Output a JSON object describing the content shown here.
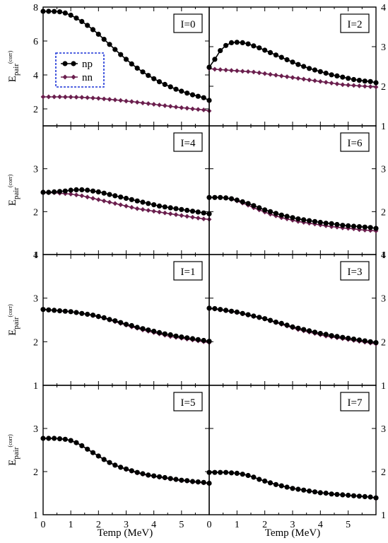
{
  "chart_data": {
    "type": "line",
    "xlabel": "Temp (MeV)",
    "ylabel_main": "E",
    "ylabel_sub": "pair",
    "ylabel_sup": "(corr)",
    "x_ticks": [
      0,
      1,
      2,
      3,
      4,
      5
    ],
    "xlim": [
      0,
      6
    ],
    "legend": {
      "placement": "inside top-left of I=0 panel",
      "entries": [
        {
          "name": "np",
          "color": "#000000"
        },
        {
          "name": "nn",
          "color": "#6b1f4e"
        }
      ]
    },
    "panels": [
      {
        "label": "I=0",
        "ylim": [
          1,
          8
        ],
        "yticks": [
          2,
          4,
          6,
          8
        ],
        "axis_side": "left",
        "x": [
          0,
          0.2,
          0.4,
          0.6,
          0.8,
          1.0,
          1.2,
          1.4,
          1.6,
          1.8,
          2.0,
          2.2,
          2.4,
          2.6,
          2.8,
          3.0,
          3.2,
          3.4,
          3.6,
          3.8,
          4.0,
          4.2,
          4.4,
          4.6,
          4.8,
          5.0,
          5.2,
          5.4,
          5.6,
          5.8,
          6.0
        ],
        "series": [
          {
            "name": "np",
            "values": [
              7.75,
              7.75,
              7.74,
              7.72,
              7.65,
              7.52,
              7.35,
              7.15,
              6.92,
              6.67,
              6.4,
              6.1,
              5.8,
              5.5,
              5.2,
              4.92,
              4.65,
              4.4,
              4.18,
              3.97,
              3.78,
              3.6,
              3.44,
              3.3,
              3.16,
              3.04,
              2.93,
              2.83,
              2.74,
              2.66,
              2.5
            ]
          },
          {
            "name": "nn",
            "values": [
              2.71,
              2.71,
              2.71,
              2.71,
              2.7,
              2.7,
              2.69,
              2.68,
              2.66,
              2.64,
              2.62,
              2.59,
              2.56,
              2.53,
              2.5,
              2.46,
              2.43,
              2.39,
              2.35,
              2.31,
              2.27,
              2.23,
              2.19,
              2.15,
              2.11,
              2.07,
              2.04,
              2.0,
              1.97,
              1.94,
              1.88
            ]
          }
        ]
      },
      {
        "label": "I=2",
        "ylim": [
          1,
          4
        ],
        "yticks": [
          1,
          2,
          3,
          4
        ],
        "axis_side": "right",
        "x": [
          0,
          0.2,
          0.4,
          0.6,
          0.8,
          1.0,
          1.2,
          1.4,
          1.6,
          1.8,
          2.0,
          2.2,
          2.4,
          2.6,
          2.8,
          3.0,
          3.2,
          3.4,
          3.6,
          3.8,
          4.0,
          4.2,
          4.4,
          4.6,
          4.8,
          5.0,
          5.2,
          5.4,
          5.6,
          5.8,
          6.0
        ],
        "series": [
          {
            "name": "np",
            "values": [
              2.48,
              2.68,
              2.9,
              3.03,
              3.1,
              3.11,
              3.1,
              3.07,
              3.02,
              2.97,
              2.91,
              2.85,
              2.79,
              2.73,
              2.67,
              2.61,
              2.55,
              2.5,
              2.45,
              2.41,
              2.37,
              2.33,
              2.29,
              2.26,
              2.23,
              2.2,
              2.17,
              2.15,
              2.13,
              2.12,
              2.09
            ]
          },
          {
            "name": "nn",
            "values": [
              2.45,
              2.43,
              2.42,
              2.41,
              2.4,
              2.39,
              2.38,
              2.37,
              2.36,
              2.34,
              2.32,
              2.3,
              2.28,
              2.26,
              2.24,
              2.22,
              2.2,
              2.18,
              2.16,
              2.14,
              2.12,
              2.1,
              2.08,
              2.06,
              2.04,
              2.03,
              2.02,
              2.01,
              2.0,
              1.99,
              1.98
            ]
          }
        ]
      },
      {
        "label": "I=4",
        "ylim": [
          1,
          4
        ],
        "yticks": [
          1,
          2,
          3
        ],
        "axis_side": "left",
        "x": [
          0,
          0.2,
          0.4,
          0.6,
          0.8,
          1.0,
          1.2,
          1.4,
          1.6,
          1.8,
          2.0,
          2.2,
          2.4,
          2.6,
          2.8,
          3.0,
          3.2,
          3.4,
          3.6,
          3.8,
          4.0,
          4.2,
          4.4,
          4.6,
          4.8,
          5.0,
          5.2,
          5.4,
          5.6,
          5.8,
          6.0
        ],
        "series": [
          {
            "name": "np",
            "values": [
              2.45,
              2.45,
              2.46,
              2.47,
              2.48,
              2.5,
              2.51,
              2.51,
              2.5,
              2.48,
              2.46,
              2.43,
              2.4,
              2.37,
              2.34,
              2.31,
              2.28,
              2.25,
              2.22,
              2.19,
              2.16,
              2.13,
              2.11,
              2.09,
              2.07,
              2.05,
              2.03,
              2.01,
              1.99,
              1.97,
              1.95
            ]
          },
          {
            "name": "nn",
            "values": [
              2.44,
              2.44,
              2.44,
              2.43,
              2.42,
              2.41,
              2.39,
              2.37,
              2.34,
              2.31,
              2.28,
              2.25,
              2.22,
              2.19,
              2.16,
              2.13,
              2.1,
              2.07,
              2.05,
              2.03,
              2.01,
              1.99,
              1.97,
              1.95,
              1.93,
              1.91,
              1.89,
              1.87,
              1.85,
              1.83,
              1.82
            ]
          }
        ]
      },
      {
        "label": "I=6",
        "ylim": [
          1,
          4
        ],
        "yticks": [
          1,
          2,
          3
        ],
        "axis_side": "right",
        "x": [
          0,
          0.2,
          0.4,
          0.6,
          0.8,
          1.0,
          1.2,
          1.4,
          1.6,
          1.8,
          2.0,
          2.2,
          2.4,
          2.6,
          2.8,
          3.0,
          3.2,
          3.4,
          3.6,
          3.8,
          4.0,
          4.2,
          4.4,
          4.6,
          4.8,
          5.0,
          5.2,
          5.4,
          5.6,
          5.8,
          6.0
        ],
        "series": [
          {
            "name": "np",
            "values": [
              2.33,
              2.33,
              2.33,
              2.32,
              2.3,
              2.27,
              2.23,
              2.19,
              2.14,
              2.09,
              2.04,
              2.0,
              1.96,
              1.92,
              1.89,
              1.86,
              1.83,
              1.81,
              1.79,
              1.77,
              1.75,
              1.73,
              1.72,
              1.7,
              1.68,
              1.67,
              1.66,
              1.65,
              1.64,
              1.63,
              1.61
            ]
          },
          {
            "name": "nn",
            "values": [
              2.33,
              2.33,
              2.33,
              2.32,
              2.29,
              2.25,
              2.2,
              2.15,
              2.09,
              2.04,
              1.99,
              1.94,
              1.9,
              1.86,
              1.83,
              1.8,
              1.77,
              1.75,
              1.73,
              1.71,
              1.69,
              1.67,
              1.65,
              1.64,
              1.62,
              1.61,
              1.6,
              1.58,
              1.57,
              1.56,
              1.55
            ]
          }
        ]
      },
      {
        "label": "I=1",
        "ylim": [
          1,
          4
        ],
        "yticks": [
          1,
          2,
          3,
          4
        ],
        "axis_side": "left",
        "x": [
          0,
          0.2,
          0.4,
          0.6,
          0.8,
          1.0,
          1.2,
          1.4,
          1.6,
          1.8,
          2.0,
          2.2,
          2.4,
          2.6,
          2.8,
          3.0,
          3.2,
          3.4,
          3.6,
          3.8,
          4.0,
          4.2,
          4.4,
          4.6,
          4.8,
          5.0,
          5.2,
          5.4,
          5.6,
          5.8,
          6.0
        ],
        "series": [
          {
            "name": "np",
            "values": [
              2.74,
              2.73,
              2.72,
              2.71,
              2.7,
              2.69,
              2.67,
              2.65,
              2.63,
              2.61,
              2.58,
              2.55,
              2.51,
              2.48,
              2.44,
              2.4,
              2.37,
              2.33,
              2.3,
              2.27,
              2.24,
              2.21,
              2.18,
              2.16,
              2.13,
              2.11,
              2.09,
              2.07,
              2.05,
              2.03,
              2.01
            ]
          },
          {
            "name": "nn",
            "values": [
              2.74,
              2.73,
              2.72,
              2.71,
              2.7,
              2.69,
              2.67,
              2.65,
              2.63,
              2.6,
              2.57,
              2.54,
              2.5,
              2.46,
              2.42,
              2.38,
              2.34,
              2.31,
              2.27,
              2.24,
              2.21,
              2.18,
              2.15,
              2.12,
              2.1,
              2.08,
              2.06,
              2.04,
              2.02,
              2.0,
              1.98
            ]
          }
        ]
      },
      {
        "label": "I=3",
        "ylim": [
          1,
          4
        ],
        "yticks": [
          1,
          2,
          3,
          4
        ],
        "axis_side": "right",
        "x": [
          0,
          0.2,
          0.4,
          0.6,
          0.8,
          1.0,
          1.2,
          1.4,
          1.6,
          1.8,
          2.0,
          2.2,
          2.4,
          2.6,
          2.8,
          3.0,
          3.2,
          3.4,
          3.6,
          3.8,
          4.0,
          4.2,
          4.4,
          4.6,
          4.8,
          5.0,
          5.2,
          5.4,
          5.6,
          5.8,
          6.0
        ],
        "series": [
          {
            "name": "np",
            "values": [
              2.77,
              2.76,
              2.74,
              2.72,
              2.7,
              2.68,
              2.65,
              2.62,
              2.59,
              2.56,
              2.53,
              2.49,
              2.45,
              2.42,
              2.38,
              2.34,
              2.31,
              2.28,
              2.25,
              2.22,
              2.19,
              2.17,
              2.14,
              2.12,
              2.1,
              2.08,
              2.06,
              2.04,
              2.02,
              2.0,
              1.98
            ]
          },
          {
            "name": "nn",
            "values": [
              2.76,
              2.75,
              2.73,
              2.71,
              2.69,
              2.67,
              2.64,
              2.61,
              2.58,
              2.55,
              2.52,
              2.48,
              2.44,
              2.4,
              2.36,
              2.32,
              2.28,
              2.25,
              2.22,
              2.19,
              2.16,
              2.13,
              2.11,
              2.09,
              2.07,
              2.05,
              2.03,
              2.01,
              1.99,
              1.97,
              1.95
            ]
          }
        ]
      },
      {
        "label": "I=5",
        "ylim": [
          1,
          4
        ],
        "yticks": [
          1,
          2,
          3
        ],
        "axis_side": "left",
        "x": [
          0,
          0.2,
          0.4,
          0.6,
          0.8,
          1.0,
          1.2,
          1.4,
          1.6,
          1.8,
          2.0,
          2.2,
          2.4,
          2.6,
          2.8,
          3.0,
          3.2,
          3.4,
          3.6,
          3.8,
          4.0,
          4.2,
          4.4,
          4.6,
          4.8,
          5.0,
          5.2,
          5.4,
          5.6,
          5.8,
          6.0
        ],
        "series": [
          {
            "name": "np",
            "values": [
              2.77,
              2.77,
              2.77,
              2.76,
              2.75,
              2.72,
              2.67,
              2.6,
              2.52,
              2.44,
              2.36,
              2.28,
              2.21,
              2.15,
              2.1,
              2.06,
              2.02,
              1.98,
              1.95,
              1.92,
              1.9,
              1.88,
              1.86,
              1.84,
              1.82,
              1.8,
              1.79,
              1.77,
              1.76,
              1.75,
              1.73
            ]
          },
          {
            "name": "nn",
            "values": [
              2.77,
              2.77,
              2.77,
              2.76,
              2.75,
              2.72,
              2.67,
              2.6,
              2.52,
              2.44,
              2.36,
              2.28,
              2.21,
              2.15,
              2.1,
              2.05,
              2.01,
              1.97,
              1.94,
              1.91,
              1.89,
              1.87,
              1.85,
              1.83,
              1.81,
              1.79,
              1.78,
              1.76,
              1.75,
              1.74,
              1.72
            ]
          }
        ]
      },
      {
        "label": "I=7",
        "ylim": [
          1,
          4
        ],
        "yticks": [
          1,
          2,
          3
        ],
        "axis_side": "right",
        "x": [
          0,
          0.2,
          0.4,
          0.6,
          0.8,
          1.0,
          1.2,
          1.4,
          1.6,
          1.8,
          2.0,
          2.2,
          2.4,
          2.6,
          2.8,
          3.0,
          3.2,
          3.4,
          3.6,
          3.8,
          4.0,
          4.2,
          4.4,
          4.6,
          4.8,
          5.0,
          5.2,
          5.4,
          5.6,
          5.8,
          6.0
        ],
        "series": [
          {
            "name": "np",
            "values": [
              1.98,
              1.98,
              1.98,
              1.98,
              1.97,
              1.96,
              1.94,
              1.91,
              1.87,
              1.82,
              1.78,
              1.74,
              1.7,
              1.67,
              1.64,
              1.61,
              1.59,
              1.57,
              1.55,
              1.53,
              1.51,
              1.5,
              1.48,
              1.47,
              1.46,
              1.45,
              1.44,
              1.43,
              1.42,
              1.41,
              1.39
            ]
          },
          {
            "name": "nn",
            "values": [
              1.98,
              1.98,
              1.98,
              1.98,
              1.97,
              1.96,
              1.94,
              1.91,
              1.87,
              1.82,
              1.78,
              1.74,
              1.7,
              1.67,
              1.64,
              1.61,
              1.59,
              1.57,
              1.55,
              1.53,
              1.51,
              1.5,
              1.48,
              1.47,
              1.46,
              1.45,
              1.44,
              1.43,
              1.42,
              1.41,
              1.38
            ]
          }
        ]
      }
    ]
  }
}
